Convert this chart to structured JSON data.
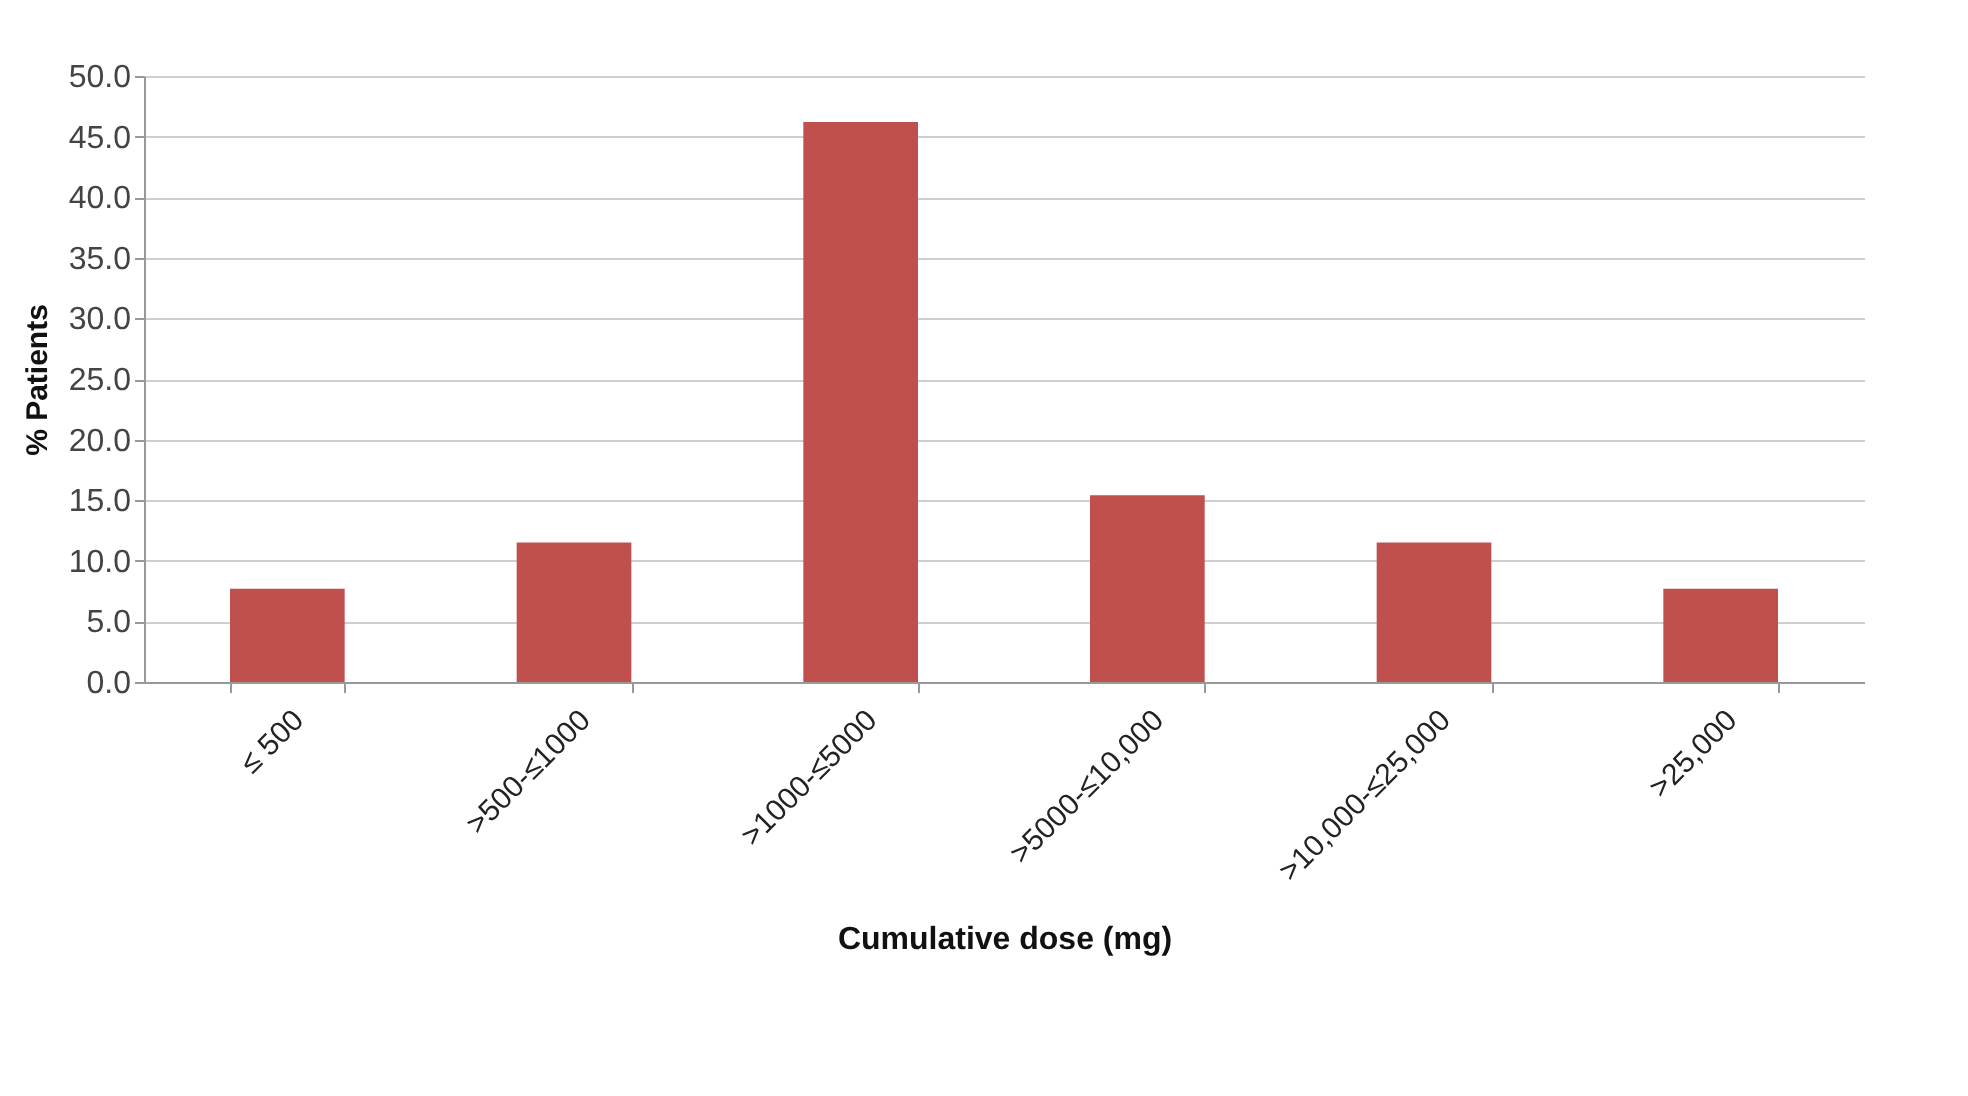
{
  "chart_data": {
    "type": "bar",
    "xlabel": "Cumulative dose (mg)",
    "ylabel": "% Patients",
    "categories": [
      "≤ 500",
      ">500-≤1000",
      ">1000-≤5000",
      ">5000-≤10,000",
      ">10,000-≤25,000",
      ">25,000"
    ],
    "values": [
      7.7,
      11.5,
      46.2,
      15.4,
      11.5,
      7.7
    ],
    "color": "#c0504d",
    "ylim": [
      0,
      50
    ],
    "yticks": [
      {
        "value": 0,
        "label": "0.0"
      },
      {
        "value": 5,
        "label": "5.0"
      },
      {
        "value": 10,
        "label": "10.0"
      },
      {
        "value": 15,
        "label": "15.0"
      },
      {
        "value": 20,
        "label": "20.0"
      },
      {
        "value": 25,
        "label": "25.0"
      },
      {
        "value": 30,
        "label": "30.0"
      },
      {
        "value": 35,
        "label": "35.0"
      },
      {
        "value": 40,
        "label": "40.0"
      },
      {
        "value": 45,
        "label": "45.0"
      },
      {
        "value": 50,
        "label": "50.0"
      }
    ],
    "grid": "y"
  }
}
